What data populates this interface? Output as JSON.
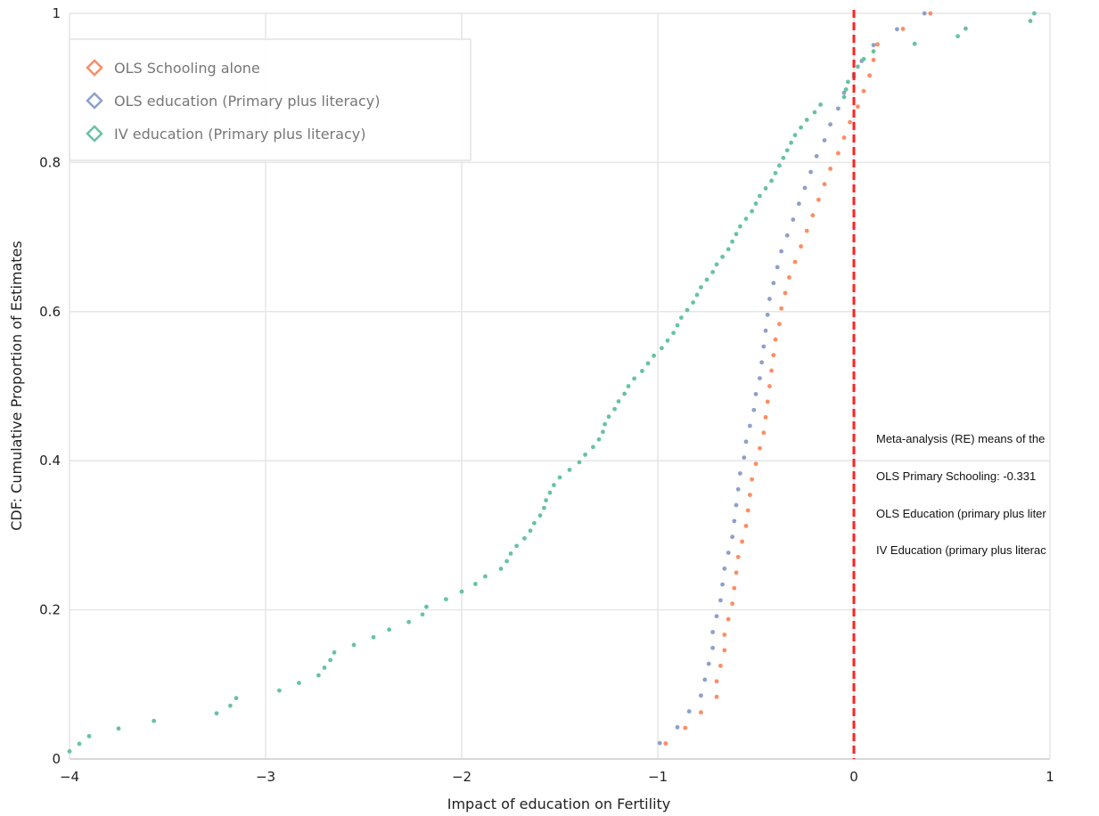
{
  "chart_data": {
    "type": "scatter",
    "title": "",
    "xlabel": "Impact of education on Fertility",
    "ylabel": "CDF: Cumulative Proportion of Estimates",
    "xlim": [
      -4,
      1
    ],
    "ylim": [
      0,
      1
    ],
    "x_ticks": [
      -4,
      -3,
      -2,
      -1,
      0,
      1
    ],
    "y_ticks": [
      0,
      0.2,
      0.4,
      0.6,
      0.8,
      1
    ],
    "x_tick_labels": [
      "−4",
      "−3",
      "−2",
      "−1",
      "0",
      "1"
    ],
    "y_tick_labels": [
      "0",
      "0.2",
      "0.4",
      "0.6",
      "0.8",
      "1"
    ],
    "grid": true,
    "legend_position": "top-left",
    "reference_line": {
      "x": 0,
      "color": "#ff2222",
      "style": "dashed"
    },
    "series": [
      {
        "name": "OLS Schooling alone",
        "color": "#fc8d62",
        "marker": "diamond",
        "cdf_x": [
          -0.96,
          -0.86,
          -0.78,
          -0.7,
          -0.7,
          -0.68,
          -0.66,
          -0.66,
          -0.64,
          -0.62,
          -0.61,
          -0.6,
          -0.59,
          -0.57,
          -0.55,
          -0.54,
          -0.53,
          -0.52,
          -0.5,
          -0.48,
          -0.46,
          -0.45,
          -0.44,
          -0.43,
          -0.42,
          -0.41,
          -0.4,
          -0.38,
          -0.37,
          -0.35,
          -0.33,
          -0.3,
          -0.27,
          -0.24,
          -0.21,
          -0.18,
          -0.15,
          -0.12,
          -0.08,
          -0.05,
          -0.02,
          0.02,
          0.05,
          0.08,
          0.1,
          0.12,
          0.25,
          0.39
        ]
      },
      {
        "name": "OLS education (Primary plus literacy)",
        "color": "#8da0cb",
        "marker": "diamond",
        "cdf_x": [
          -0.99,
          -0.9,
          -0.84,
          -0.78,
          -0.76,
          -0.74,
          -0.72,
          -0.72,
          -0.7,
          -0.68,
          -0.67,
          -0.66,
          -0.64,
          -0.62,
          -0.61,
          -0.6,
          -0.59,
          -0.58,
          -0.56,
          -0.55,
          -0.53,
          -0.51,
          -0.5,
          -0.48,
          -0.47,
          -0.46,
          -0.45,
          -0.44,
          -0.43,
          -0.41,
          -0.39,
          -0.37,
          -0.34,
          -0.31,
          -0.28,
          -0.25,
          -0.22,
          -0.19,
          -0.15,
          -0.12,
          -0.08,
          -0.05,
          0,
          0.04,
          0.1,
          0.22,
          0.36
        ]
      },
      {
        "name": "IV education (Primary plus literacy)",
        "color": "#66c2a5",
        "marker": "diamond",
        "cdf_x": [
          -4,
          -3.95,
          -3.9,
          -3.75,
          -3.57,
          -3.25,
          -3.18,
          -3.15,
          -2.93,
          -2.83,
          -2.73,
          -2.7,
          -2.67,
          -2.65,
          -2.55,
          -2.45,
          -2.37,
          -2.27,
          -2.2,
          -2.18,
          -2.08,
          -2.0,
          -1.93,
          -1.88,
          -1.8,
          -1.77,
          -1.75,
          -1.72,
          -1.68,
          -1.65,
          -1.63,
          -1.6,
          -1.58,
          -1.57,
          -1.55,
          -1.53,
          -1.5,
          -1.45,
          -1.4,
          -1.37,
          -1.33,
          -1.3,
          -1.28,
          -1.27,
          -1.25,
          -1.22,
          -1.2,
          -1.17,
          -1.15,
          -1.12,
          -1.08,
          -1.05,
          -1.02,
          -0.98,
          -0.95,
          -0.92,
          -0.9,
          -0.88,
          -0.85,
          -0.82,
          -0.8,
          -0.78,
          -0.75,
          -0.72,
          -0.7,
          -0.67,
          -0.64,
          -0.62,
          -0.6,
          -0.58,
          -0.55,
          -0.52,
          -0.5,
          -0.48,
          -0.45,
          -0.42,
          -0.4,
          -0.38,
          -0.36,
          -0.34,
          -0.32,
          -0.3,
          -0.27,
          -0.24,
          -0.2,
          -0.17,
          -0.05,
          -0.04,
          -0.03,
          0.0,
          0.02,
          0.05,
          0.1,
          0.31,
          0.53,
          0.57,
          0.9,
          0.92
        ]
      }
    ],
    "annotations": [
      "Meta-analysis (RE) means of the",
      "OLS Primary Schooling: -0.331",
      "OLS Education (primary plus liter",
      "IV Education (primary plus literac"
    ]
  }
}
